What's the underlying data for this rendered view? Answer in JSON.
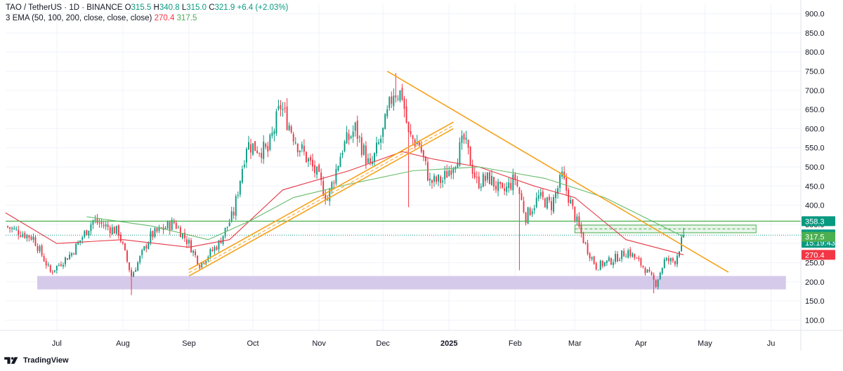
{
  "header": {
    "symbol": "TAO / TetherUS · 1D · BINANCE",
    "o_label": "O",
    "o_value": "315.5",
    "h_label": "H",
    "h_value": "340.8",
    "l_label": "L",
    "l_value": "315.0",
    "c_label": "C",
    "c_value": "321.9",
    "change": "+6.4 (+2.03%)",
    "ema_label": "3 EMA (50, 100, 200, close, close, close)",
    "ema_value_1": "270.4",
    "ema_value_2": "317.5"
  },
  "footer": {
    "brand": "TradingView"
  },
  "colors": {
    "up": "#089981",
    "down": "#f23645",
    "ema50": "#e53945",
    "ema100": "#66bb6a",
    "trendline": "#f7a21b",
    "resistance": "#4caf50",
    "support_zone": "#d1c4e9"
  },
  "chart_data": {
    "type": "candlestick",
    "title": "TAO / TetherUS · 1D · BINANCE",
    "ylim": [
      75,
      925
    ],
    "y_ticks": [
      100,
      150,
      200,
      250,
      300,
      350,
      400,
      450,
      500,
      550,
      600,
      650,
      700,
      750,
      800,
      850,
      900
    ],
    "y_tick_labels": [
      "100.0",
      "150.0",
      "200.0",
      "250.0",
      "300.0",
      "350.0",
      "400.0",
      "450.0",
      "500.0",
      "550.0",
      "600.0",
      "650.0",
      "700.0",
      "750.0",
      "800.0",
      "850.0",
      "900.0"
    ],
    "x_start": "2024-06-07",
    "x_end": "2025-06-15",
    "x_labels": [
      {
        "date": "2024-07-01",
        "label": "Jul"
      },
      {
        "date": "2024-08-01",
        "label": "Aug"
      },
      {
        "date": "2024-09-01",
        "label": "Sep"
      },
      {
        "date": "2024-10-01",
        "label": "Oct"
      },
      {
        "date": "2024-11-01",
        "label": "Nov"
      },
      {
        "date": "2024-12-01",
        "label": "Dec"
      },
      {
        "date": "2025-01-01",
        "label": "2025"
      },
      {
        "date": "2025-02-01",
        "label": "Feb"
      },
      {
        "date": "2025-03-01",
        "label": "Mar"
      },
      {
        "date": "2025-04-01",
        "label": "Apr"
      },
      {
        "date": "2025-05-01",
        "label": "May"
      },
      {
        "date": "2025-06-01",
        "label": "Ju"
      }
    ],
    "price_path": [
      [
        "2024-06-07",
        345
      ],
      [
        "2024-06-20",
        315
      ],
      [
        "2024-06-28",
        225
      ],
      [
        "2024-07-08",
        275
      ],
      [
        "2024-07-18",
        360
      ],
      [
        "2024-07-30",
        330
      ],
      [
        "2024-08-05",
        215
      ],
      [
        "2024-08-14",
        320
      ],
      [
        "2024-08-25",
        355
      ],
      [
        "2024-09-01",
        300
      ],
      [
        "2024-09-06",
        245
      ],
      [
        "2024-09-15",
        300
      ],
      [
        "2024-09-22",
        380
      ],
      [
        "2024-09-28",
        560
      ],
      [
        "2024-10-08",
        540
      ],
      [
        "2024-10-14",
        660
      ],
      [
        "2024-10-22",
        560
      ],
      [
        "2024-10-31",
        480
      ],
      [
        "2024-11-05",
        415
      ],
      [
        "2024-11-12",
        550
      ],
      [
        "2024-11-18",
        600
      ],
      [
        "2024-11-25",
        495
      ],
      [
        "2024-12-01",
        590
      ],
      [
        "2024-12-06",
        700
      ],
      [
        "2024-12-10",
        690
      ],
      [
        "2024-12-13",
        580
      ],
      [
        "2024-12-18",
        560
      ],
      [
        "2024-12-23",
        460
      ],
      [
        "2024-12-29",
        465
      ],
      [
        "2025-01-04",
        520
      ],
      [
        "2025-01-08",
        570
      ],
      [
        "2025-01-14",
        460
      ],
      [
        "2025-01-20",
        470
      ],
      [
        "2025-01-26",
        430
      ],
      [
        "2025-02-01",
        470
      ],
      [
        "2025-02-06",
        370
      ],
      [
        "2025-02-12",
        420
      ],
      [
        "2025-02-18",
        400
      ],
      [
        "2025-02-23",
        475
      ],
      [
        "2025-03-01",
        370
      ],
      [
        "2025-03-06",
        295
      ],
      [
        "2025-03-11",
        240
      ],
      [
        "2025-03-18",
        255
      ],
      [
        "2025-03-26",
        280
      ],
      [
        "2025-04-02",
        240
      ],
      [
        "2025-04-08",
        195
      ],
      [
        "2025-04-12",
        255
      ],
      [
        "2025-04-17",
        255
      ],
      [
        "2025-04-21",
        321.9
      ]
    ],
    "ema50": [
      [
        "2024-06-07",
        380
      ],
      [
        "2024-07-01",
        300
      ],
      [
        "2024-08-01",
        310
      ],
      [
        "2024-09-01",
        290
      ],
      [
        "2024-09-20",
        310
      ],
      [
        "2024-10-15",
        440
      ],
      [
        "2024-11-15",
        490
      ],
      [
        "2024-12-10",
        540
      ],
      [
        "2024-12-25",
        520
      ],
      [
        "2025-01-15",
        500
      ],
      [
        "2025-02-10",
        450
      ],
      [
        "2025-03-01",
        420
      ],
      [
        "2025-03-25",
        310
      ],
      [
        "2025-04-21",
        270.4
      ]
    ],
    "ema100": [
      [
        "2024-07-15",
        370
      ],
      [
        "2024-08-15",
        345
      ],
      [
        "2024-09-10",
        310
      ],
      [
        "2024-09-30",
        360
      ],
      [
        "2024-10-20",
        420
      ],
      [
        "2024-11-15",
        455
      ],
      [
        "2024-12-15",
        490
      ],
      [
        "2025-01-15",
        500
      ],
      [
        "2025-02-15",
        470
      ],
      [
        "2025-03-15",
        420
      ],
      [
        "2025-04-21",
        317.5
      ]
    ],
    "trendlines": [
      {
        "name": "descending",
        "points": [
          [
            "2024-12-03",
            750
          ],
          [
            "2025-05-12",
            225
          ]
        ]
      },
      {
        "name": "ascending-channel-lower",
        "points": [
          [
            "2024-09-01",
            215
          ],
          [
            "2025-01-03",
            600
          ]
        ]
      },
      {
        "name": "ascending-channel-upper",
        "points": [
          [
            "2024-09-01",
            232
          ],
          [
            "2025-01-03",
            617
          ]
        ]
      }
    ],
    "horizontal_levels": [
      {
        "value": 358.3,
        "label": "358.3"
      },
      {
        "value": 321.9,
        "label": "321.9",
        "sublabel": "15:19:43",
        "style": "dotted"
      }
    ],
    "zones": [
      {
        "name": "support",
        "from_date": "2024-06-07",
        "to_date": "2025-06-08",
        "low": 180,
        "high": 215
      },
      {
        "name": "resistance-box",
        "from_date": "2025-03-01",
        "to_date": "2025-05-25",
        "low": 328,
        "high": 348
      }
    ],
    "price_labels": [
      {
        "value": 358.3,
        "text": "358.3",
        "color": "#089981"
      },
      {
        "value": 321.9,
        "text": "321.9",
        "subtext": "15:19:43",
        "color": "#089981"
      },
      {
        "value": 317.5,
        "text": "317.5",
        "color": "#4caf50"
      },
      {
        "value": 270.4,
        "text": "270.4",
        "color": "#f23645"
      }
    ]
  }
}
